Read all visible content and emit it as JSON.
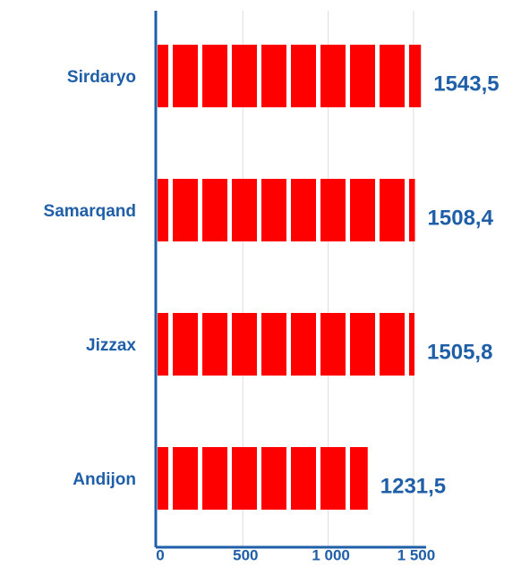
{
  "chart_data": {
    "type": "hbar",
    "categories": [
      "Sirdaryo",
      "Samarqand",
      "Jizzax",
      "Andijon"
    ],
    "values": [
      1543.5,
      1508.4,
      1505.8,
      1231.5
    ],
    "value_labels": [
      "1543,5",
      "1508,4",
      "1505,8",
      "1231,5"
    ],
    "color": "#ff0000",
    "xlim": [
      0,
      1600
    ],
    "xticks": [
      0,
      500,
      {
        "value": 1000,
        "label": "1 000"
      },
      {
        "value": 1500,
        "label": "1 500"
      }
    ],
    "grid": true
  }
}
